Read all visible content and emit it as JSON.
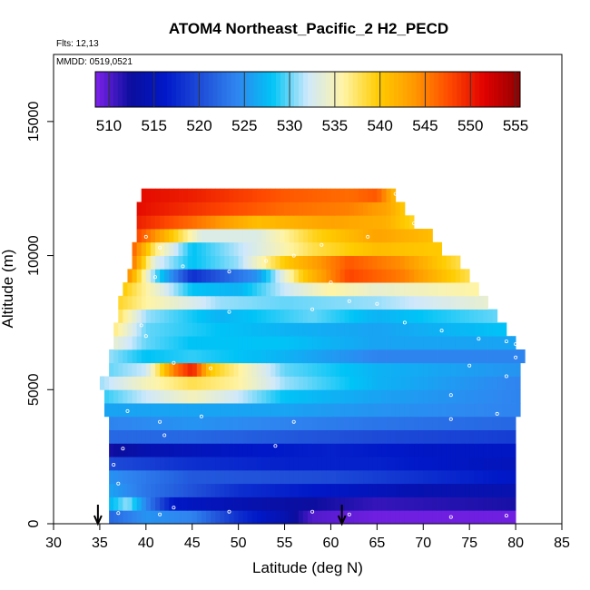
{
  "chart_data": {
    "type": "heatmap",
    "title": "ATOM4 Northeast_Pacific_2 H2_PECD",
    "subtitle_flights": "Flts: 12,13",
    "subtitle_dates": "MMDD: 0519,0521",
    "xlabel": "Latitude (deg N)",
    "ylabel": "Altitude (m)",
    "xlim": [
      30,
      85
    ],
    "ylim": [
      0,
      17500
    ],
    "x_ticks": [
      "30",
      "35",
      "40",
      "45",
      "50",
      "55",
      "60",
      "65",
      "70",
      "75",
      "80",
      "85"
    ],
    "x_tick_values": [
      30,
      35,
      40,
      45,
      50,
      55,
      60,
      65,
      70,
      75,
      80,
      85
    ],
    "y_ticks": [
      "0",
      "5000",
      "10000",
      "15000"
    ],
    "y_tick_values": [
      0,
      5000,
      10000,
      15000
    ],
    "colorbar": {
      "min": 508.5,
      "max": 555.5,
      "ticks": [
        "510",
        "515",
        "520",
        "525",
        "530",
        "535",
        "540",
        "545",
        "550",
        "555"
      ],
      "tick_values": [
        510,
        515,
        520,
        525,
        530,
        535,
        540,
        545,
        550,
        555
      ],
      "colors": [
        "#7e22ea",
        "#0b0e9e",
        "#0018c8",
        "#1f4ed8",
        "#2f86f0",
        "#00c4f6",
        "#cfe8fb",
        "#fff4a6",
        "#ffcc00",
        "#ff9900",
        "#ff4a00",
        "#e00000",
        "#900000"
      ]
    },
    "arrows_lat": [
      34.8,
      61.2
    ],
    "layers": [
      {
        "alt": [
          0,
          500
        ],
        "lat": [
          36,
          80
        ],
        "stops": [
          [
            36,
            522
          ],
          [
            40,
            525
          ],
          [
            45,
            524
          ],
          [
            50,
            518
          ],
          [
            55,
            514
          ],
          [
            58,
            510
          ],
          [
            65,
            509
          ],
          [
            80,
            509
          ]
        ]
      },
      {
        "alt": [
          500,
          1000
        ],
        "lat": [
          36,
          80
        ],
        "stops": [
          [
            36,
            527
          ],
          [
            38,
            531
          ],
          [
            40,
            524
          ],
          [
            43,
            516
          ],
          [
            55,
            513
          ],
          [
            65,
            511
          ],
          [
            80,
            512
          ]
        ]
      },
      {
        "alt": [
          1000,
          1500
        ],
        "lat": [
          36,
          80
        ],
        "stops": [
          [
            36,
            526
          ],
          [
            40,
            523
          ],
          [
            50,
            518
          ],
          [
            60,
            516
          ],
          [
            70,
            514
          ],
          [
            80,
            514
          ]
        ]
      },
      {
        "alt": [
          1500,
          2000
        ],
        "lat": [
          36,
          80
        ],
        "stops": [
          [
            36,
            525
          ],
          [
            45,
            521
          ],
          [
            60,
            520
          ],
          [
            70,
            518
          ],
          [
            80,
            516
          ]
        ]
      },
      {
        "alt": [
          2000,
          2500
        ],
        "lat": [
          36,
          80
        ],
        "stops": [
          [
            36,
            520
          ],
          [
            45,
            518
          ],
          [
            55,
            517
          ],
          [
            65,
            517
          ],
          [
            80,
            515
          ]
        ]
      },
      {
        "alt": [
          2500,
          3000
        ],
        "lat": [
          36,
          80
        ],
        "stops": [
          [
            36,
            512
          ],
          [
            40,
            514
          ],
          [
            50,
            516
          ],
          [
            60,
            517
          ],
          [
            70,
            516
          ],
          [
            80,
            516
          ]
        ]
      },
      {
        "alt": [
          3000,
          3500
        ],
        "lat": [
          36,
          80
        ],
        "stops": [
          [
            36,
            522
          ],
          [
            45,
            522
          ],
          [
            55,
            521
          ],
          [
            65,
            520
          ],
          [
            80,
            519
          ]
        ]
      },
      {
        "alt": [
          3500,
          4000
        ],
        "lat": [
          36,
          80
        ],
        "stops": [
          [
            36,
            524
          ],
          [
            45,
            525
          ],
          [
            55,
            524
          ],
          [
            65,
            523
          ],
          [
            80,
            522
          ]
        ]
      },
      {
        "alt": [
          4000,
          4500
        ],
        "lat": [
          35.5,
          80.5
        ],
        "stops": [
          [
            35.5,
            526
          ],
          [
            45,
            526
          ],
          [
            55,
            526
          ],
          [
            65,
            525
          ],
          [
            80.5,
            524
          ]
        ]
      },
      {
        "alt": [
          4500,
          5000
        ],
        "lat": [
          35.5,
          80.5
        ],
        "stops": [
          [
            35.5,
            529
          ],
          [
            40,
            532
          ],
          [
            45,
            535
          ],
          [
            50,
            532
          ],
          [
            55,
            528
          ],
          [
            65,
            526
          ],
          [
            80.5,
            524
          ]
        ]
      },
      {
        "alt": [
          5000,
          5500
        ],
        "lat": [
          35,
          80.5
        ],
        "stops": [
          [
            35,
            531
          ],
          [
            40,
            535
          ],
          [
            45,
            538
          ],
          [
            50,
            536
          ],
          [
            55,
            531
          ],
          [
            65,
            527
          ],
          [
            80.5,
            524
          ]
        ]
      },
      {
        "alt": [
          5500,
          6000
        ],
        "lat": [
          36,
          80.5
        ],
        "stops": [
          [
            36,
            530
          ],
          [
            40,
            532
          ],
          [
            43,
            545
          ],
          [
            45,
            550
          ],
          [
            47,
            540
          ],
          [
            55,
            530
          ],
          [
            65,
            527
          ],
          [
            80.5,
            525
          ]
        ]
      },
      {
        "alt": [
          6000,
          6500
        ],
        "lat": [
          36,
          81
        ],
        "stops": [
          [
            36,
            531
          ],
          [
            40,
            528
          ],
          [
            45,
            529
          ],
          [
            55,
            527
          ],
          [
            65,
            524
          ],
          [
            81,
            524
          ]
        ]
      },
      {
        "alt": [
          6500,
          7000
        ],
        "lat": [
          36.5,
          80
        ],
        "stops": [
          [
            36.5,
            534
          ],
          [
            40,
            530
          ],
          [
            45,
            528
          ],
          [
            55,
            528
          ],
          [
            65,
            526
          ],
          [
            80,
            526
          ]
        ]
      },
      {
        "alt": [
          7000,
          7500
        ],
        "lat": [
          36.5,
          79
        ],
        "stops": [
          [
            36.5,
            537
          ],
          [
            40,
            530
          ],
          [
            48,
            528
          ],
          [
            55,
            527
          ],
          [
            65,
            526
          ],
          [
            79,
            528
          ]
        ]
      },
      {
        "alt": [
          7500,
          8000
        ],
        "lat": [
          37,
          78
        ],
        "stops": [
          [
            37,
            538
          ],
          [
            40,
            531
          ],
          [
            48,
            527
          ],
          [
            58,
            530
          ],
          [
            65,
            527
          ],
          [
            78,
            530
          ]
        ]
      },
      {
        "alt": [
          8000,
          8500
        ],
        "lat": [
          37,
          77
        ],
        "stops": [
          [
            37,
            539
          ],
          [
            40,
            536
          ],
          [
            48,
            531
          ],
          [
            55,
            530
          ],
          [
            65,
            531
          ],
          [
            77,
            534
          ]
        ]
      },
      {
        "alt": [
          8500,
          9000
        ],
        "lat": [
          37.5,
          76
        ],
        "stops": [
          [
            37.5,
            540
          ],
          [
            40,
            536
          ],
          [
            45,
            528
          ],
          [
            50,
            527
          ],
          [
            55,
            532
          ],
          [
            60,
            536
          ],
          [
            65,
            534
          ],
          [
            76,
            536
          ]
        ]
      },
      {
        "alt": [
          9000,
          9500
        ],
        "lat": [
          38,
          75
        ],
        "stops": [
          [
            38,
            545
          ],
          [
            41,
            530
          ],
          [
            45,
            518
          ],
          [
            48,
            521
          ],
          [
            52,
            525
          ],
          [
            57,
            540
          ],
          [
            62,
            548
          ],
          [
            68,
            545
          ],
          [
            75,
            538
          ]
        ]
      },
      {
        "alt": [
          9500,
          10000
        ],
        "lat": [
          38.5,
          74
        ],
        "stops": [
          [
            38.5,
            546
          ],
          [
            41,
            533
          ],
          [
            45,
            528
          ],
          [
            50,
            531
          ],
          [
            55,
            540
          ],
          [
            62,
            547
          ],
          [
            68,
            544
          ],
          [
            74,
            538
          ]
        ]
      },
      {
        "alt": [
          10000,
          10500
        ],
        "lat": [
          38.5,
          72
        ],
        "stops": [
          [
            38.5,
            547
          ],
          [
            41,
            537
          ],
          [
            45,
            528
          ],
          [
            52,
            533
          ],
          [
            58,
            538
          ],
          [
            65,
            541
          ],
          [
            72,
            540
          ]
        ]
      },
      {
        "alt": [
          10500,
          11000
        ],
        "lat": [
          39,
          71
        ],
        "stops": [
          [
            39,
            548
          ],
          [
            42,
            542
          ],
          [
            46,
            533
          ],
          [
            52,
            533
          ],
          [
            58,
            539
          ],
          [
            65,
            543
          ],
          [
            71,
            541
          ]
        ]
      },
      {
        "alt": [
          11000,
          11500
        ],
        "lat": [
          39,
          69
        ],
        "stops": [
          [
            39,
            550
          ],
          [
            45,
            546
          ],
          [
            52,
            541
          ],
          [
            60,
            543
          ],
          [
            66,
            542
          ],
          [
            69,
            539
          ]
        ]
      },
      {
        "alt": [
          11500,
          12000
        ],
        "lat": [
          39,
          68
        ],
        "stops": [
          [
            39,
            551
          ],
          [
            45,
            549
          ],
          [
            55,
            546
          ],
          [
            62,
            545
          ],
          [
            66,
            543
          ],
          [
            68,
            540
          ]
        ]
      },
      {
        "alt": [
          12000,
          12500
        ],
        "lat": [
          39.5,
          67
        ],
        "stops": [
          [
            39.5,
            551
          ],
          [
            45,
            550
          ],
          [
            55,
            547
          ],
          [
            62,
            546
          ],
          [
            65,
            547
          ],
          [
            67,
            541
          ]
        ]
      }
    ],
    "sample_points": [
      [
        37,
        400
      ],
      [
        41.5,
        350
      ],
      [
        43,
        600
      ],
      [
        49,
        450
      ],
      [
        58,
        450
      ],
      [
        62,
        350
      ],
      [
        73,
        250
      ],
      [
        79,
        300
      ],
      [
        37,
        1500
      ],
      [
        36.5,
        2200
      ],
      [
        37.5,
        2800
      ],
      [
        54,
        2900
      ],
      [
        42,
        3300
      ],
      [
        41.5,
        3800
      ],
      [
        56,
        3800
      ],
      [
        73,
        3900
      ],
      [
        78,
        4100
      ],
      [
        38,
        4200
      ],
      [
        46,
        4000
      ],
      [
        73,
        4800
      ],
      [
        79,
        5500
      ],
      [
        47,
        5800
      ],
      [
        43,
        6000
      ],
      [
        40,
        7000
      ],
      [
        39.5,
        7400
      ],
      [
        49,
        7900
      ],
      [
        58,
        8000
      ],
      [
        65,
        8200
      ],
      [
        62,
        8300
      ],
      [
        68,
        7500
      ],
      [
        72,
        7200
      ],
      [
        76,
        6900
      ],
      [
        79,
        6800
      ],
      [
        80,
        6700
      ],
      [
        60,
        9000
      ],
      [
        41,
        9200
      ],
      [
        44,
        9600
      ],
      [
        49,
        9400
      ],
      [
        53,
        9800
      ],
      [
        56,
        10000
      ],
      [
        59,
        10400
      ],
      [
        64,
        10700
      ],
      [
        69,
        11200
      ],
      [
        70,
        12000
      ],
      [
        67,
        12300
      ],
      [
        68,
        12400
      ],
      [
        71,
        11500
      ],
      [
        40,
        10700
      ],
      [
        41.5,
        10300
      ],
      [
        75,
        5900
      ],
      [
        80,
        6200
      ]
    ]
  }
}
